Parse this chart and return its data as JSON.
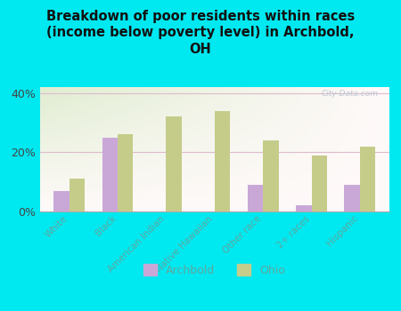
{
  "title": "Breakdown of poor residents within races\n(income below poverty level) in Archbold,\nOH",
  "categories": [
    "White",
    "Black",
    "American Indian",
    "Native Hawaiian",
    "Other race",
    "2+ races",
    "Hispanic"
  ],
  "archbold": [
    7,
    25,
    0,
    0,
    9,
    2,
    9
  ],
  "ohio": [
    11,
    26,
    32,
    34,
    24,
    19,
    22
  ],
  "archbold_color": "#c9a8d8",
  "ohio_color": "#c5cc8a",
  "bg_outer": "#00e8f0",
  "ylim": [
    0,
    42
  ],
  "yticks": [
    0,
    20,
    40
  ],
  "ytick_labels": [
    "0%",
    "20%",
    "40%"
  ],
  "watermark": "City-Data.com",
  "bar_width": 0.32,
  "tick_label_color": "#5fa8a0",
  "grid_color": "#ddbbcc",
  "title_color": "#111111"
}
